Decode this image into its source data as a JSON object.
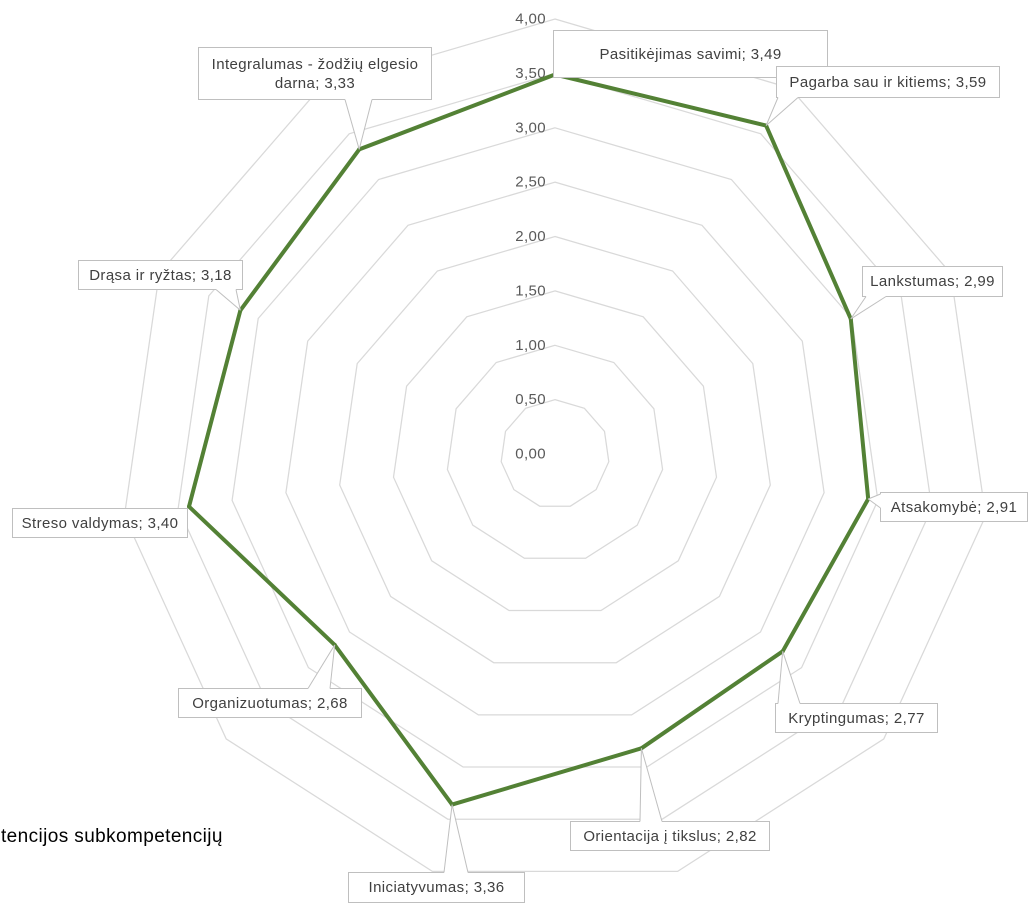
{
  "caption": "tencijos subkompetencijų",
  "colors": {
    "background": "#ffffff",
    "series": "#538135",
    "grid": "#d9d9d9",
    "tick_text": "#595959",
    "label_border": "#bfbfbf",
    "label_text": "#404040",
    "caption_text": "#000000"
  },
  "chart_data": {
    "type": "radar",
    "categories": [
      "Pasitikėjimas savimi",
      "Pagarba sau ir kitiems",
      "Lankstumas",
      "Atsakomybė",
      "Kryptingumas",
      "Orientacija į tikslus",
      "Iniciatyvumas",
      "Organizuotumas",
      "Streso valdymas",
      "Drąsa ir ryžtas",
      "Integralumas - žodžių elgesio darna"
    ],
    "values": [
      3.49,
      3.59,
      2.99,
      2.91,
      2.77,
      2.82,
      3.36,
      2.68,
      3.4,
      3.18,
      3.33
    ],
    "data_labels": [
      "Pasitikėjimas savimi; 3,49",
      "Pagarba sau ir kitiems; 3,59",
      "Lankstumas; 2,99",
      "Atsakomybė; 2,91",
      "Kryptingumas; 2,77",
      "Orientacija į tikslus; 2,82",
      "Iniciatyvumas; 3,36",
      "Organizuotumas; 2,68",
      "Streso valdymas; 3,40",
      "Drąsa ir ryžtas; 3,18",
      "Integralumas - žodžių elgesio darna; 3,33"
    ],
    "rlim": [
      0,
      4
    ],
    "r_ticks": [
      0,
      0.5,
      1,
      1.5,
      2,
      2.5,
      3,
      3.5,
      4
    ],
    "tick_labels": [
      "0,00",
      "0,50",
      "1,00",
      "1,50",
      "2,00",
      "2,50",
      "3,00",
      "3,50",
      "4,00"
    ],
    "grid": true,
    "legend": "none"
  }
}
